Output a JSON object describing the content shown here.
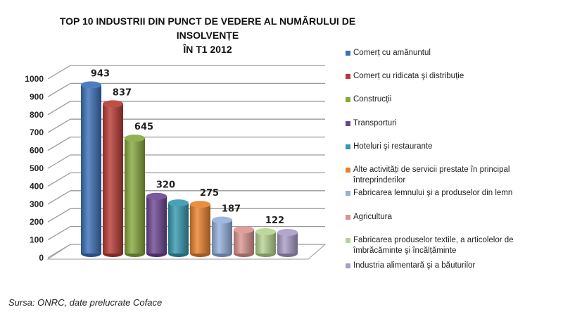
{
  "chart_data": {
    "type": "bar",
    "title": "TOP 10 INDUSTRII DIN PUNCT DE VEDERE AL NUMĂRULUI DE INSOLVENȚE ÎN T1 2012",
    "title_lines": [
      "TOP 10 INDUSTRII DIN PUNCT DE VEDERE AL NUMĂRULUI DE INSOLVENȚE",
      "ÎN T1 2012"
    ],
    "style": "3d-cylinder",
    "xlabel": "",
    "ylabel": "",
    "ylim": [
      0,
      1000
    ],
    "yticks": [
      "0",
      "100",
      "200",
      "300",
      "400",
      "500",
      "600",
      "700",
      "800",
      "900",
      "1000"
    ],
    "grid": true,
    "legend_position": "right",
    "series": [
      {
        "name": "Comerț cu amănuntul",
        "value": 943,
        "label": "943",
        "color": "#3a6fb8"
      },
      {
        "name": "Comerț cu ridicata şi distribuție",
        "value": 837,
        "label": "837",
        "color": "#b83a34"
      },
      {
        "name": "Construcții",
        "value": 645,
        "label": "645",
        "color": "#86a83c"
      },
      {
        "name": "Transporturi",
        "value": 320,
        "label": "320",
        "color": "#6b4592"
      },
      {
        "name": "Hoteluri şi restaurante",
        "value": 283,
        "label": "",
        "color": "#3597b0"
      },
      {
        "name": "Alte activități de servicii prestate în principal întreprinderilor",
        "value": 275,
        "label": "275",
        "color": "#e8812c"
      },
      {
        "name": "Fabricarea lemnului şi a produselor din lemn",
        "value": 187,
        "label": "187",
        "color": "#93b0dc"
      },
      {
        "name": "Agricultura",
        "value": 133,
        "label": "",
        "color": "#dc9490"
      },
      {
        "name": "Fabricarea produselor textile, a articolelor de îmbrăcăminte şi încălțăminte",
        "value": 122,
        "label": "122",
        "color": "#b7d48f"
      },
      {
        "name": "Industria alimentară şi a băuturilor",
        "value": 118,
        "label": "",
        "color": "#a99cc9"
      }
    ]
  },
  "legend": [
    "Comerț cu amănuntul",
    "Comerț cu ridicata şi distribuție",
    "Construcții",
    "Transporturi",
    "Hoteluri şi restaurante",
    "Alte activități de servicii prestate în principal întreprinderilor",
    "Fabricarea lemnului şi a produselor din lemn",
    "Agricultura",
    "Fabricarea produselor textile, a articolelor de îmbrăcăminte şi încălțăminte",
    "Industria alimentară şi a băuturilor"
  ],
  "source": "Sursa: ONRC, date prelucrate Coface"
}
